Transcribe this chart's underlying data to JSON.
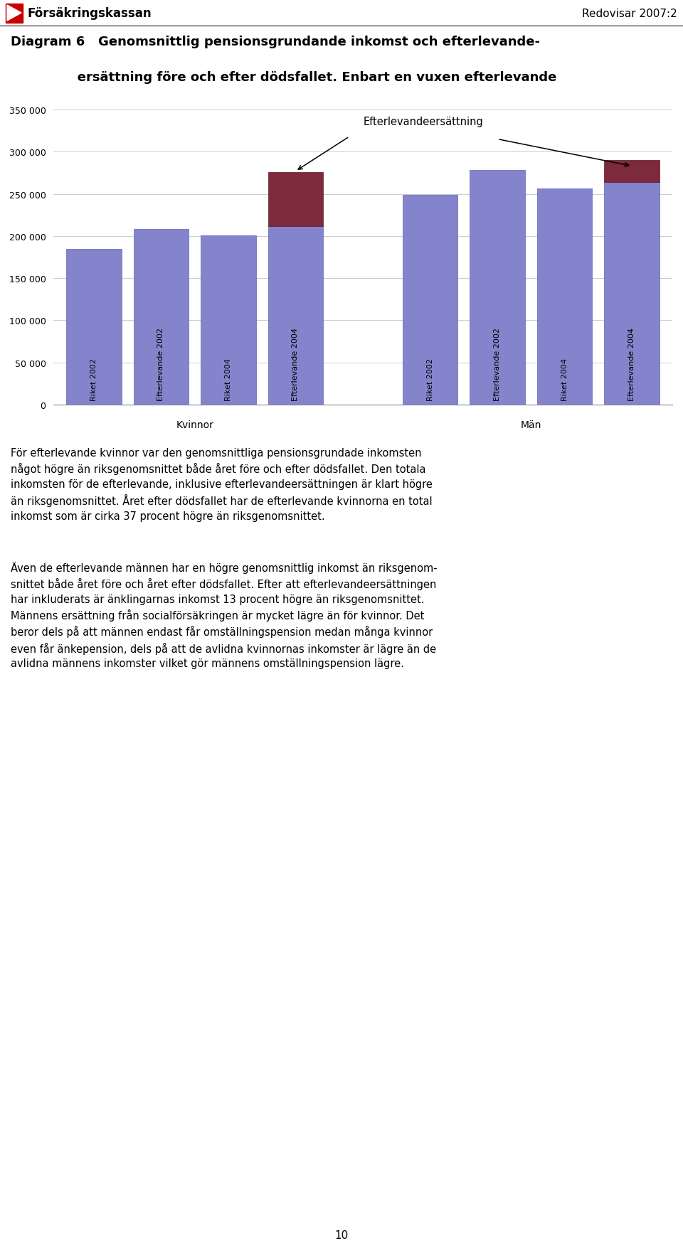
{
  "title_line1": "Diagram 6   Genomsnittlig pensionsgrundande inkomst och efterlevande-",
  "title_line2": "               ersättning före och efter dödsfallet. Enbart en vuxen efterlevande",
  "header_left": "Försäkringskassan",
  "header_right": "Redovisar 2007:2",
  "ylim": [
    0,
    350000
  ],
  "yticks": [
    0,
    50000,
    100000,
    150000,
    200000,
    250000,
    300000,
    350000
  ],
  "bar_labels": [
    "Riket 2002",
    "Efterlevande 2002",
    "Riket 2004",
    "Efterlevande 2004",
    "Riket 2002",
    "Efterlevande 2002",
    "Riket 2004",
    "Efterlevande 2004"
  ],
  "group_labels": [
    "Kvinnor",
    "Män"
  ],
  "base_values": [
    185000,
    208000,
    201000,
    212000,
    249000,
    278000,
    256000,
    264000
  ],
  "top_values": [
    0,
    0,
    0,
    64000,
    0,
    0,
    0,
    26000
  ],
  "bar_color": "#8484cc",
  "top_color": "#7d2a3c",
  "annotation_text": "Efterlevandeersättning",
  "paragraph1": "För efterlevande kvinnor var den genomsnittliga pensionsgrundade inkomsten\nnågot högre än riksgenomsnittet både året före och efter dödsfallet. Den totala\ninkomsten för de efterlevande, inklusive efterlevandeersättningen är klart högre\nän riksgenomsnittet. Året efter dödsfallet har de efterlevande kvinnorna en total\ninkomst som är cirka 37 procent högre än riksgenomsnittet.",
  "paragraph2": "Även de efterlevande männen har en högre genomsnittlig inkomst än riksgenom-\nsnittet både året före och året efter dödsfallet. Efter att efterlevandeersättningen\nhar inkluderats är änklingarnas inkomst 13 procent högre än riksgenomsnittet.\nMännens ersättning från socialförsäkringen är mycket lägre än för kvinnor. Det\nberor dels på att männen endast får omställningspension medan många kvinnor\neven får änkepension, dels på att de avlidna kvinnornas inkomster är lägre än de\navlidna männens inkomster vilket gör männens omställningspension lägre.",
  "page_number": "10",
  "background_color": "#ffffff",
  "grid_color": "#cccccc"
}
